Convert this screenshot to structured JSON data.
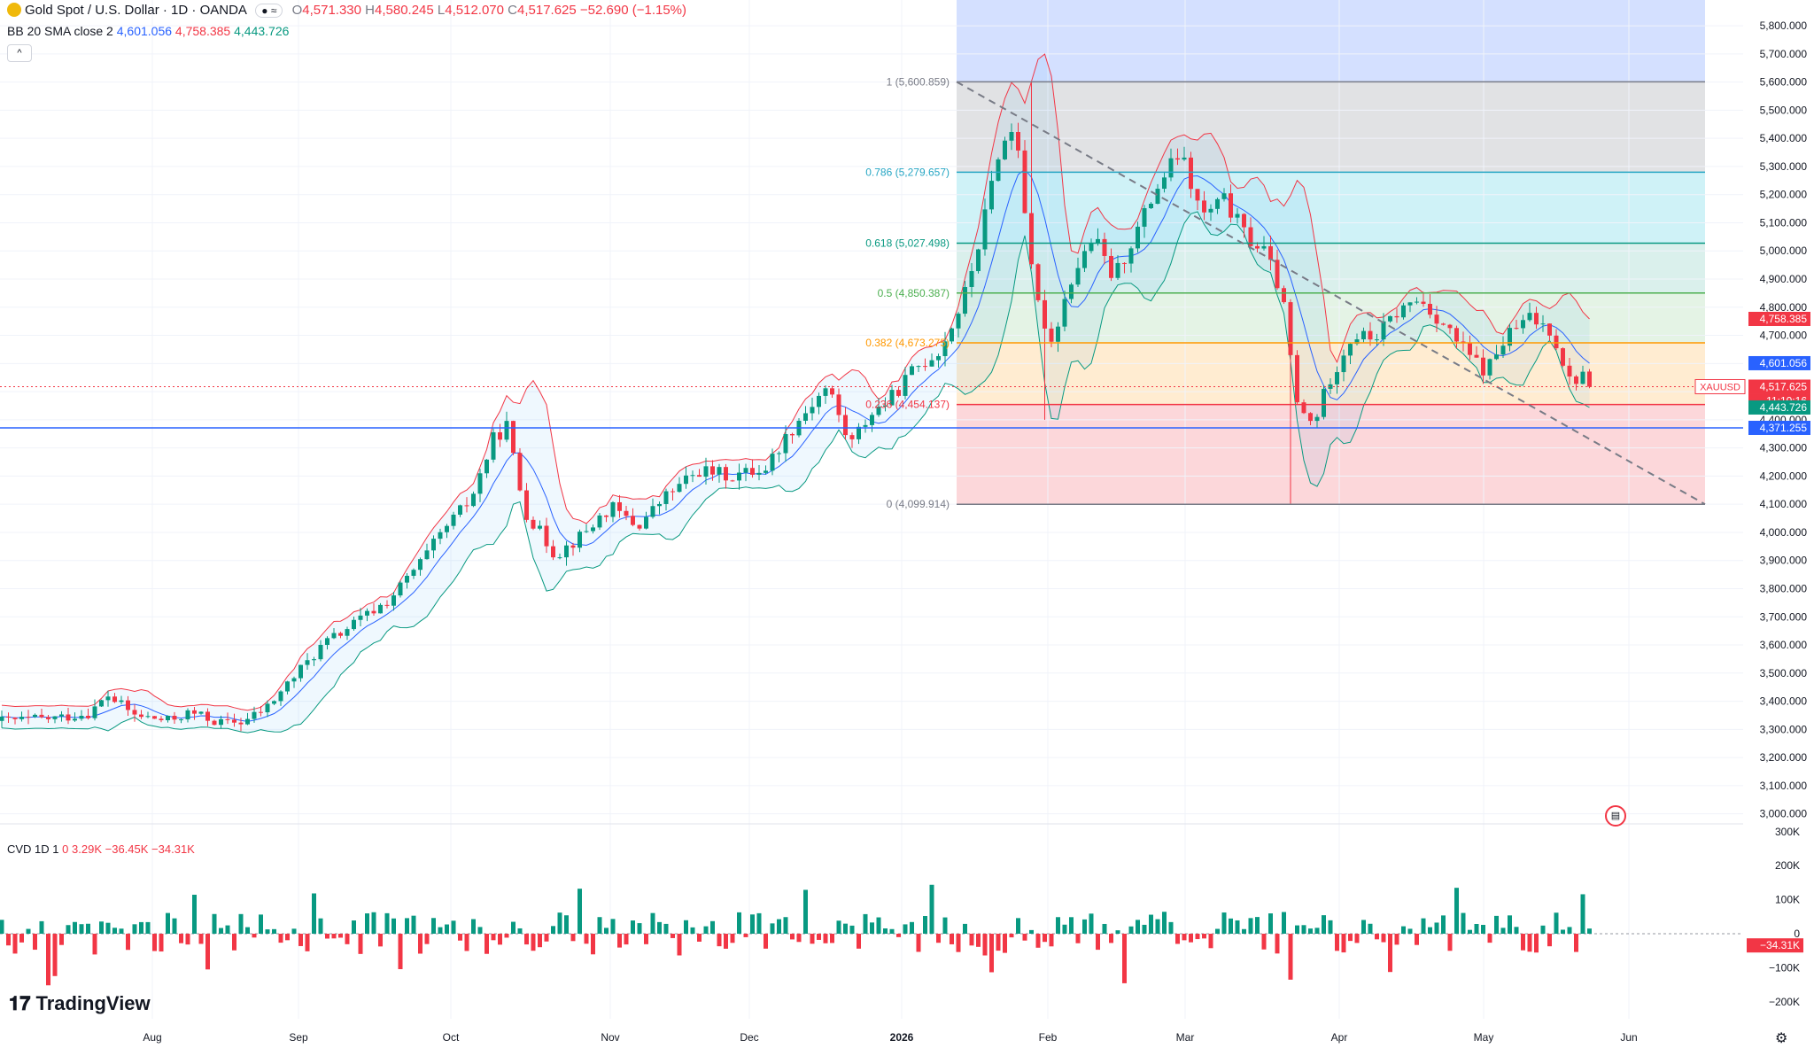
{
  "header": {
    "symbol": "Gold Spot / U.S. Dollar · 1D · OANDA",
    "open_label": "O",
    "open": "4,571.330",
    "high_label": "H",
    "high": "4,580.245",
    "low_label": "L",
    "low": "4,512.070",
    "close_label": "C",
    "close": "4,517.625",
    "change": "−52.690 (−1.15%)",
    "market_status": "● ≈"
  },
  "indicator_bb": {
    "label": "BB 20 SMA close 2",
    "basis": "4,601.056",
    "upper": "4,758.385",
    "lower": "4,443.726"
  },
  "indicator_cvd": {
    "label": "CVD 1D 1",
    "open": "0",
    "high": "3.29K",
    "low": "−36.45K",
    "close": "−34.31K"
  },
  "branding": {
    "logo": "TradingView"
  },
  "icons": {
    "collapse": "chevron-up-icon",
    "event": "us-flag-icon",
    "settings": "gear-icon"
  },
  "colors": {
    "up": "#089981",
    "down": "#f23645",
    "bb_basis": "#2962ff",
    "bb_upper": "#f23645",
    "bb_lower": "#089981",
    "horizontal_line": "#2962ff",
    "fib_0": "#787b86",
    "fib_1": "#787b86",
    "fib_0786": "#26a6c4",
    "fib_0618": "#089981",
    "fib_05": "#4caf50",
    "fib_0382": "#ff9800",
    "fib_0236": "#f23645"
  },
  "chart_data": [
    {
      "type": "candlestick",
      "symbol": "XAUUSD",
      "price_axis": {
        "ticks": [
          "5,800.000",
          "5,700.000",
          "5,600.000",
          "5,500.000",
          "5,400.000",
          "5,300.000",
          "5,200.000",
          "5,100.000",
          "5,000.000",
          "4,900.000",
          "4,800.000",
          "4,700.000",
          "4,600.000",
          "4,500.000",
          "4,400.000",
          "4,300.000",
          "4,200.000",
          "4,100.000",
          "4,000.000",
          "3,900.000",
          "3,800.000",
          "3,700.000",
          "3,600.000",
          "3,500.000",
          "3,400.000",
          "3,300.000",
          "3,200.000",
          "3,100.000",
          "3,000.000"
        ],
        "ylim": [
          2980,
          5860
        ]
      },
      "time_axis": [
        "Aug",
        "Sep",
        "Oct",
        "Nov",
        "Dec",
        "2026",
        "Feb",
        "Mar",
        "Apr",
        "May",
        "Jun"
      ],
      "price_labels": [
        {
          "text": "4,758.385",
          "value": 4758.385,
          "color": "#f23645"
        },
        {
          "text": "4,601.056",
          "value": 4601.056,
          "color": "#2962ff"
        },
        {
          "text": "XAUUSD",
          "value": 4517.625,
          "color": "#f23645"
        },
        {
          "text": "4,517.625",
          "value": 4517.625,
          "color": "#f23645"
        },
        {
          "text": "11:10:16",
          "value": 4517.625,
          "color": "#f23645"
        },
        {
          "text": "4,443.726",
          "value": 4443.726,
          "color": "#089981"
        },
        {
          "text": "4,371.255",
          "value": 4371.255,
          "color": "#2962ff"
        }
      ],
      "horizontal_line": 4371.255,
      "fibonacci": {
        "levels": [
          {
            "ratio": 1,
            "label": "1 (5,600.859)",
            "value": 5600.859
          },
          {
            "ratio": 0.786,
            "label": "0.786 (5,279.657)",
            "value": 5279.657
          },
          {
            "ratio": 0.618,
            "label": "0.618 (5,027.498)",
            "value": 5027.498
          },
          {
            "ratio": 0.5,
            "label": "0.5 (4,850.387)",
            "value": 4850.387
          },
          {
            "ratio": 0.382,
            "label": "0.382 (4,673.275)",
            "value": 4673.275
          },
          {
            "ratio": 0.236,
            "label": "0.236 (4,454.137)",
            "value": 4454.137
          },
          {
            "ratio": 0,
            "label": "0 (4,099.914)",
            "value": 4099.914
          }
        ]
      },
      "trend_line": {
        "from": 5600.859,
        "to": 4099.914
      }
    },
    {
      "type": "bar",
      "name": "CVD",
      "value_axis": {
        "ticks": [
          "300K",
          "200K",
          "100K",
          "0",
          "−100K",
          "−200K"
        ],
        "ylim": [
          -250,
          310
        ]
      },
      "last_value_label": "−34.31K"
    }
  ]
}
